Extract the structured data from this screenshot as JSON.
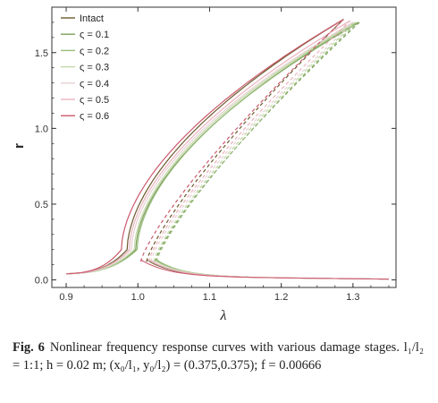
{
  "chart_data": {
    "type": "line",
    "title": "",
    "xlabel": "λ",
    "ylabel": "r",
    "xlim": [
      0.88,
      1.36
    ],
    "ylim": [
      -0.05,
      1.8
    ],
    "xticks": [
      0.9,
      1.0,
      1.1,
      1.2,
      1.3
    ],
    "xtick_labels": [
      "0.9",
      "1.0",
      "1.1",
      "1.2",
      "1.3"
    ],
    "yticks": [
      0.0,
      0.5,
      1.0,
      1.5
    ],
    "ytick_labels": [
      "0.0",
      "0.5",
      "1.0",
      "1.5"
    ],
    "grid": false,
    "legend_position": "top-left",
    "series": [
      {
        "name": "Intact",
        "color": "#6b5a2e",
        "shift": 0.0,
        "peak_lambda": 1.287,
        "peak_r": 1.72
      },
      {
        "name": "ς = 0.1",
        "color": "#7da05a",
        "shift": 0.012,
        "peak_lambda": 1.309,
        "peak_r": 1.7
      },
      {
        "name": "ς = 0.2",
        "color": "#98bd7a",
        "shift": 0.014,
        "peak_lambda": 1.306,
        "peak_r": 1.7
      },
      {
        "name": "ς = 0.3",
        "color": "#c2d6a8",
        "shift": 0.01,
        "peak_lambda": 1.303,
        "peak_r": 1.7
      },
      {
        "name": "ς = 0.4",
        "color": "#e6d2d2",
        "shift": 0.006,
        "peak_lambda": 1.3,
        "peak_r": 1.7
      },
      {
        "name": "ς = 0.5",
        "color": "#eab3bd",
        "shift": 0.003,
        "peak_lambda": 1.296,
        "peak_r": 1.71
      },
      {
        "name": "ς = 0.6",
        "color": "#cc5a6e",
        "shift": -0.008,
        "peak_lambda": 1.287,
        "peak_r": 1.72
      }
    ]
  },
  "caption": {
    "label": "Fig. 6",
    "text": "Nonlinear frequency response curves with various damage stages. l₁/l₂ = 1:1; h = 0.02 m; (x₀/l₁, y₀/l₂) = (0.375,0.375); f = 0.00666"
  }
}
